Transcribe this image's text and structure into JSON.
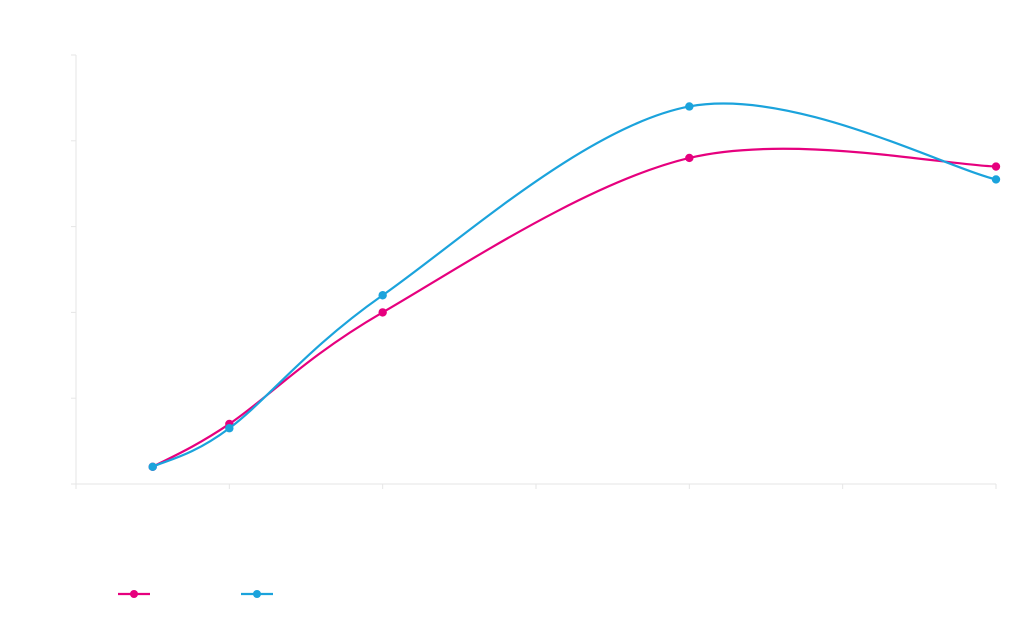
{
  "chart_data": {
    "type": "line",
    "title": "",
    "xlabel": "",
    "ylabel": "",
    "smooth": true,
    "grid": false,
    "legend_position": "bottom-left",
    "xlim": [
      0,
      12
    ],
    "ylim": [
      0,
      100
    ],
    "x_ticks": [
      0,
      2,
      4,
      6,
      8,
      10,
      12
    ],
    "y_ticks": [
      0,
      20,
      40,
      60,
      80,
      100
    ],
    "series": [
      {
        "color": "#e6007e",
        "points": [
          [
            1,
            4
          ],
          [
            2,
            14
          ],
          [
            4,
            40
          ],
          [
            8,
            76
          ],
          [
            12,
            74
          ]
        ]
      },
      {
        "color": "#1ba3dc",
        "points": [
          [
            1,
            4
          ],
          [
            2,
            13
          ],
          [
            4,
            44
          ],
          [
            8,
            88
          ],
          [
            12,
            71
          ]
        ]
      }
    ]
  }
}
